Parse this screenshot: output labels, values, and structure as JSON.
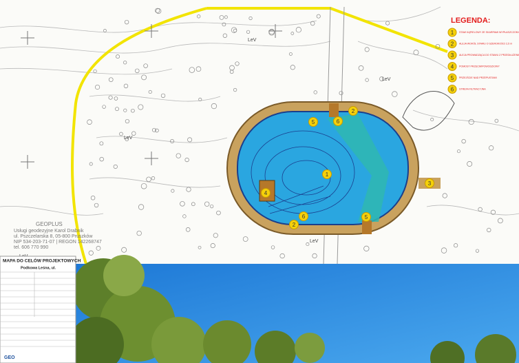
{
  "legend": {
    "title": "LEGENDA:",
    "items": [
      {
        "number": "1",
        "text": "STAW KĄPIELOWY ZE SKARPAMI WYPŁASZCZONYMI"
      },
      {
        "number": "2",
        "text": "ALEJA WOKÓŁ STAWU O SZEROKOŚCI 2,5 m"
      },
      {
        "number": "3",
        "text": "ALEJA PROWADZĄCA DO STAWU Z PRZEDŁUŻENIEM ISTNIEJĄCEJ"
      },
      {
        "number": "4",
        "text": "POMOST PRZECIWPOWODZIOWY"
      },
      {
        "number": "5",
        "text": "PRZEJŚCIE NAD PRZEPUSTAMI"
      },
      {
        "number": "6",
        "text": "STREFA FILTRACYJNA"
      }
    ]
  },
  "map": {
    "soil_labels": [
      "LeV",
      "LeV",
      "LeV",
      "LeV",
      "LeV"
    ],
    "markers": [
      "1",
      "2",
      "2",
      "3",
      "4",
      "5",
      "5",
      "6",
      "6"
    ]
  },
  "title_block": {
    "company": "GEOPLUS",
    "lines": [
      "Usługi geodezyjne Karol Drabnik",
      "ul. Pszczelarska 8, 05-800 Pruszków",
      "NIP 534-203-71-07 | REGON 142268747",
      "tel. 606 770 990"
    ]
  },
  "table": {
    "title": "MAPA DO CELÓW PROJEKTOWYCH",
    "subtitle": "Podkowa Leśna, ul.",
    "logo": "GEO"
  }
}
